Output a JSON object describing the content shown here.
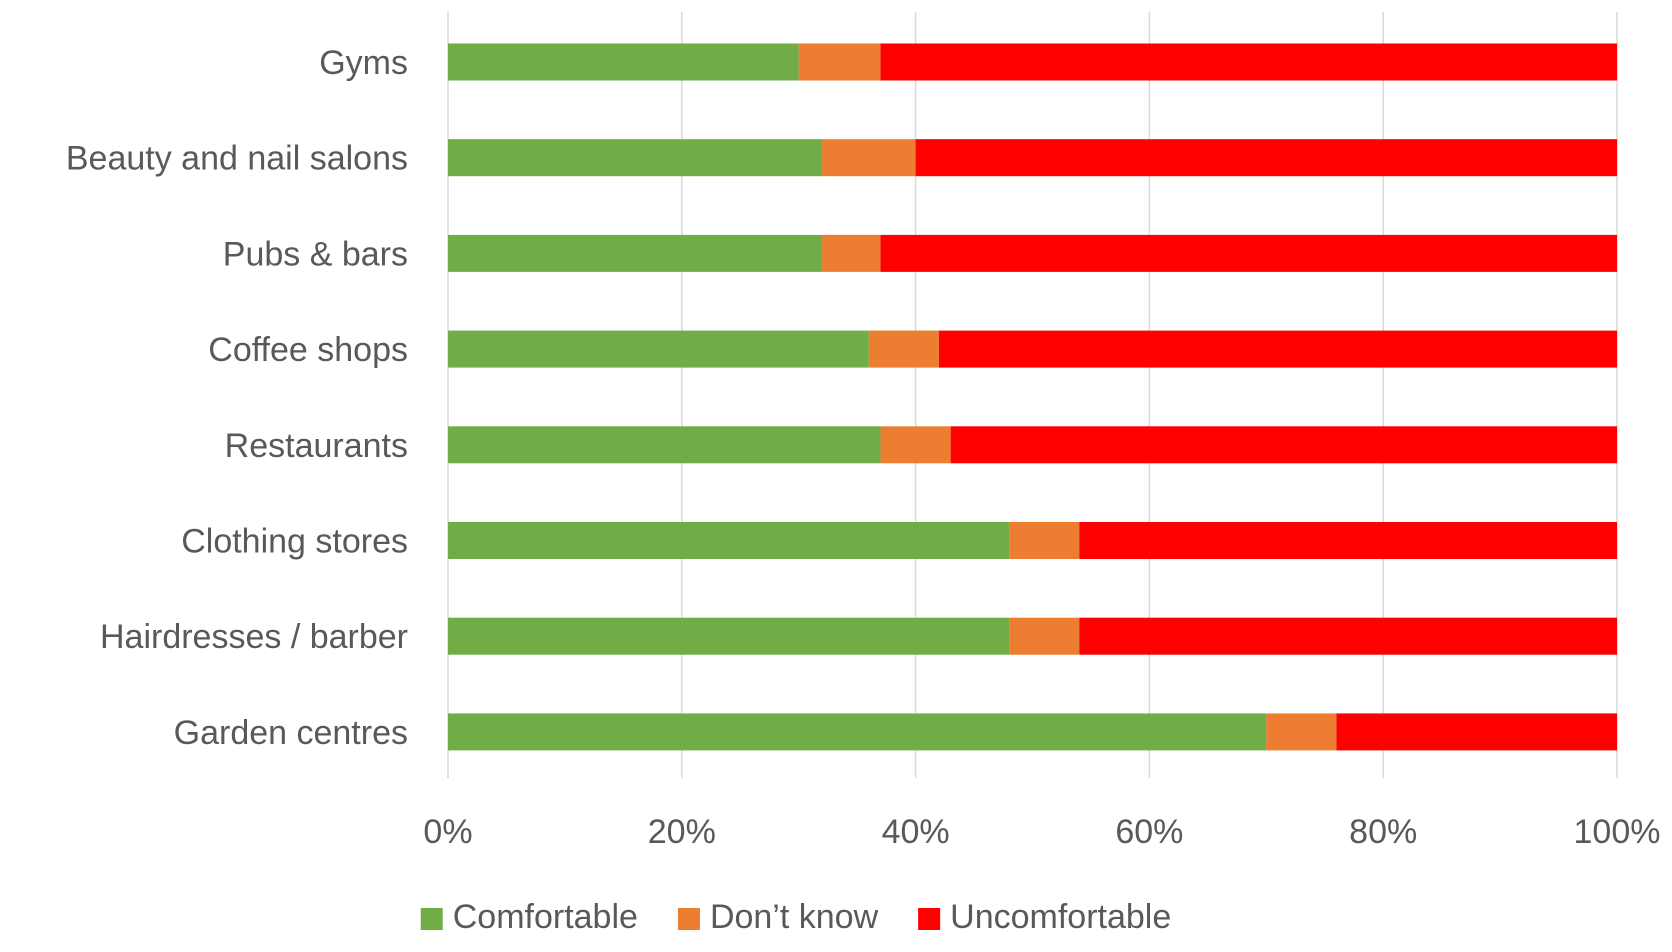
{
  "chart_data": {
    "type": "bar",
    "orientation": "horizontal",
    "stacked": "percent",
    "title": "",
    "xlabel": "",
    "ylabel": "",
    "categories": [
      "Gyms",
      "Beauty and nail salons",
      "Pubs & bars",
      "Coffee shops",
      "Restaurants",
      "Clothing stores",
      "Hairdresses / barber",
      "Garden centres"
    ],
    "series": [
      {
        "name": "Comfortable",
        "color": "#70ad47",
        "values": [
          30,
          32,
          32,
          36,
          37,
          48,
          48,
          70
        ]
      },
      {
        "name": "Don’t know",
        "color": "#ed7d31",
        "values": [
          7,
          8,
          5,
          6,
          6,
          6,
          6,
          6
        ]
      },
      {
        "name": "Uncomfortable",
        "color": "#ff0000",
        "values": [
          63,
          60,
          63,
          58,
          57,
          46,
          46,
          24
        ]
      }
    ],
    "xlim": [
      0,
      100
    ],
    "x_ticks": [
      "0%",
      "20%",
      "40%",
      "60%",
      "80%",
      "100%"
    ],
    "x_tick_values": [
      0,
      20,
      40,
      60,
      80,
      100
    ],
    "grid": "vertical",
    "legend_position": "bottom"
  }
}
